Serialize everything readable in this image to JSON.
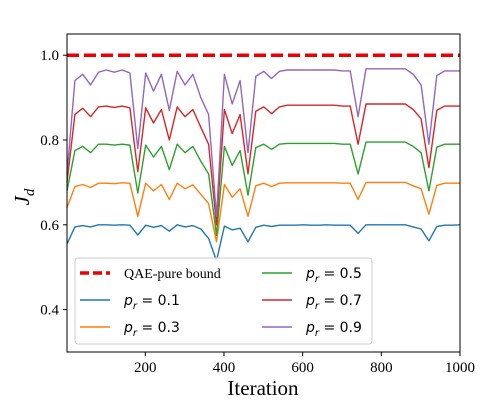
{
  "chart_data": {
    "type": "line",
    "xlabel": "Iteration",
    "ylabel_main": "J",
    "ylabel_sub": "d",
    "xlim": [
      1,
      1000
    ],
    "ylim": [
      0.3,
      1.05
    ],
    "xticks": [
      200,
      400,
      600,
      800,
      1000
    ],
    "yticks": [
      0.4,
      0.6,
      0.8,
      1.0
    ],
    "xtick_labels": [
      "200",
      "400",
      "600",
      "800",
      "1000"
    ],
    "ytick_labels": [
      "0.4",
      "0.6",
      "0.8",
      "1.0"
    ],
    "legend_placement": "lower-left, two columns",
    "bound": {
      "label": "QAE-pure bound",
      "value": 1.0,
      "color": "#ee0000",
      "style": "dashed"
    },
    "x": [
      1,
      21,
      41,
      61,
      81,
      101,
      121,
      141,
      161,
      181,
      201,
      221,
      241,
      261,
      281,
      301,
      321,
      341,
      361,
      381,
      401,
      421,
      441,
      461,
      481,
      501,
      521,
      541,
      561,
      581,
      601,
      621,
      641,
      661,
      681,
      701,
      721,
      741,
      761,
      781,
      801,
      821,
      841,
      861,
      881,
      901,
      921,
      941,
      961,
      981,
      1000
    ],
    "series": [
      {
        "label_prefix": "p",
        "label_sub": "r",
        "label_value": " = 0.1",
        "color": "#1f77b4",
        "values": [
          0.555,
          0.595,
          0.598,
          0.595,
          0.6,
          0.6,
          0.599,
          0.6,
          0.599,
          0.576,
          0.599,
          0.594,
          0.598,
          0.585,
          0.6,
          0.595,
          0.598,
          0.59,
          0.568,
          0.515,
          0.597,
          0.588,
          0.592,
          0.56,
          0.594,
          0.599,
          0.596,
          0.599,
          0.599,
          0.599,
          0.6,
          0.599,
          0.599,
          0.6,
          0.599,
          0.599,
          0.599,
          0.58,
          0.6,
          0.6,
          0.6,
          0.6,
          0.6,
          0.6,
          0.595,
          0.59,
          0.562,
          0.596,
          0.599,
          0.599,
          0.6
        ]
      },
      {
        "label_prefix": "p",
        "label_sub": "r",
        "label_value": " = 0.3",
        "color": "#ff7f0e",
        "values": [
          0.64,
          0.69,
          0.695,
          0.688,
          0.698,
          0.698,
          0.697,
          0.699,
          0.698,
          0.62,
          0.698,
          0.68,
          0.695,
          0.66,
          0.698,
          0.685,
          0.694,
          0.672,
          0.65,
          0.56,
          0.695,
          0.665,
          0.685,
          0.62,
          0.692,
          0.698,
          0.69,
          0.698,
          0.699,
          0.699,
          0.699,
          0.699,
          0.699,
          0.699,
          0.699,
          0.698,
          0.698,
          0.66,
          0.7,
          0.7,
          0.7,
          0.7,
          0.7,
          0.7,
          0.692,
          0.685,
          0.625,
          0.693,
          0.698,
          0.698,
          0.698
        ]
      },
      {
        "label_prefix": "p",
        "label_sub": "r",
        "label_value": " = 0.5",
        "color": "#2ca02c",
        "values": [
          0.68,
          0.775,
          0.785,
          0.77,
          0.79,
          0.79,
          0.788,
          0.79,
          0.788,
          0.675,
          0.788,
          0.76,
          0.785,
          0.73,
          0.79,
          0.77,
          0.785,
          0.75,
          0.72,
          0.575,
          0.785,
          0.74,
          0.775,
          0.67,
          0.782,
          0.79,
          0.778,
          0.79,
          0.792,
          0.792,
          0.792,
          0.792,
          0.792,
          0.792,
          0.792,
          0.79,
          0.79,
          0.72,
          0.795,
          0.795,
          0.795,
          0.795,
          0.795,
          0.795,
          0.785,
          0.77,
          0.68,
          0.783,
          0.79,
          0.79,
          0.79
        ]
      },
      {
        "label_prefix": "p",
        "label_sub": "r",
        "label_value": " = 0.7",
        "color": "#d62728",
        "values": [
          0.7,
          0.86,
          0.875,
          0.855,
          0.878,
          0.88,
          0.877,
          0.88,
          0.876,
          0.725,
          0.876,
          0.84,
          0.872,
          0.8,
          0.878,
          0.855,
          0.872,
          0.83,
          0.79,
          0.6,
          0.872,
          0.815,
          0.86,
          0.72,
          0.868,
          0.878,
          0.862,
          0.878,
          0.882,
          0.882,
          0.882,
          0.882,
          0.882,
          0.882,
          0.882,
          0.88,
          0.88,
          0.79,
          0.885,
          0.885,
          0.885,
          0.885,
          0.885,
          0.885,
          0.872,
          0.85,
          0.735,
          0.87,
          0.88,
          0.88,
          0.88
        ]
      },
      {
        "label_prefix": "p",
        "label_sub": "r",
        "label_value": " = 0.9",
        "color": "#9467bd",
        "values": [
          0.72,
          0.94,
          0.955,
          0.93,
          0.96,
          0.965,
          0.96,
          0.965,
          0.958,
          0.78,
          0.958,
          0.915,
          0.955,
          0.87,
          0.962,
          0.93,
          0.955,
          0.9,
          0.86,
          0.62,
          0.955,
          0.885,
          0.94,
          0.77,
          0.95,
          0.962,
          0.945,
          0.962,
          0.965,
          0.965,
          0.965,
          0.965,
          0.965,
          0.965,
          0.965,
          0.963,
          0.963,
          0.855,
          0.968,
          0.968,
          0.968,
          0.968,
          0.968,
          0.968,
          0.955,
          0.93,
          0.79,
          0.952,
          0.963,
          0.963,
          0.963
        ]
      }
    ]
  }
}
